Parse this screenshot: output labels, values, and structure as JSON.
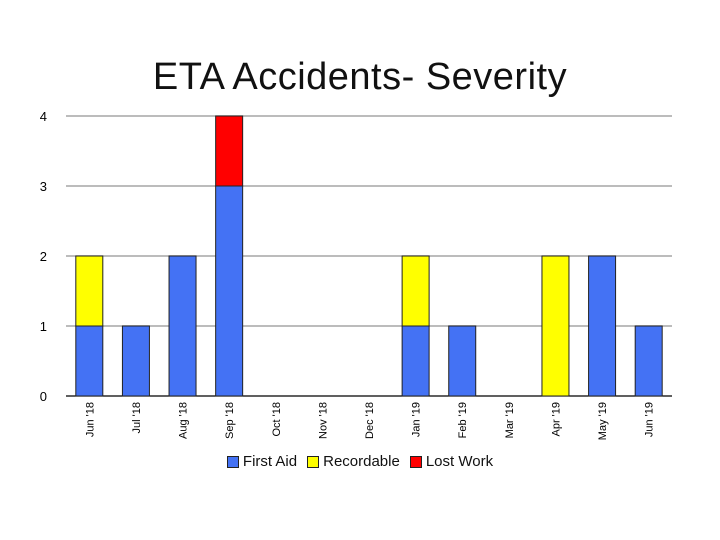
{
  "chart_data": {
    "type": "bar",
    "stacked": true,
    "title": "ETA Accidents- Severity",
    "xlabel": "",
    "ylabel": "",
    "ylim": [
      0,
      4
    ],
    "yticks": [
      "0",
      "1",
      "2",
      "3",
      "4"
    ],
    "categories": [
      "Jun '18",
      "Jul '18",
      "Aug '18",
      "Sep '18",
      "Oct '18",
      "Nov '18",
      "Dec '18",
      "Jan '19",
      "Feb '19",
      "Mar '19",
      "Apr '19",
      "May '19",
      "Jun '19"
    ],
    "series": [
      {
        "name": "First Aid",
        "color": "#4472F4",
        "values": [
          1,
          1,
          2,
          3,
          0,
          0,
          0,
          1,
          1,
          0,
          0,
          2,
          1
        ]
      },
      {
        "name": "Recordable",
        "color": "#FFFF00",
        "values": [
          1,
          0,
          0,
          0,
          0,
          0,
          0,
          1,
          0,
          0,
          2,
          0,
          0
        ]
      },
      {
        "name": "Lost Work",
        "color": "#FF0000",
        "values": [
          0,
          0,
          0,
          1,
          0,
          0,
          0,
          0,
          0,
          0,
          0,
          0,
          0
        ]
      }
    ],
    "grid": true,
    "legend": "bottom"
  }
}
